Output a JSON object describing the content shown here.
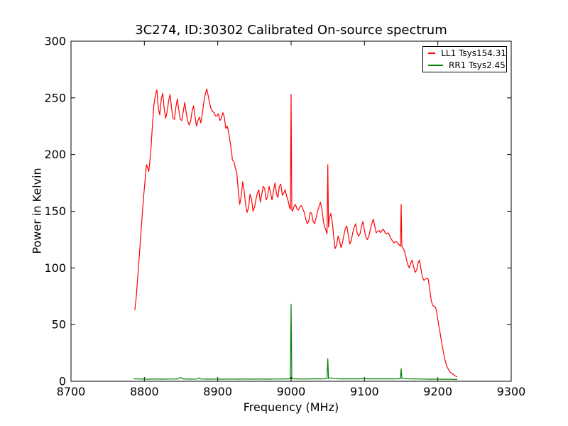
{
  "figure": {
    "background": "#ffffff",
    "frame_color": "#000000"
  },
  "chart_data": {
    "type": "line",
    "title": "3C274, ID:30302 Calibrated On-source spectrum",
    "xlabel": "Frequency (MHz)",
    "ylabel": "Power in Kelvin",
    "xlim": [
      8700,
      9300
    ],
    "ylim": [
      0,
      300
    ],
    "x_ticks": [
      8700,
      8800,
      8900,
      9000,
      9100,
      9200,
      9300
    ],
    "y_ticks": [
      0,
      50,
      100,
      150,
      200,
      250,
      300
    ],
    "grid": false,
    "legend_position": "top-right",
    "series": [
      {
        "name": "LL1 Tsys154.31",
        "color": "#ff0000",
        "points": [
          [
            8787,
            63
          ],
          [
            8789,
            75
          ],
          [
            8791,
            92
          ],
          [
            8793,
            110
          ],
          [
            8795,
            128
          ],
          [
            8797,
            146
          ],
          [
            8799,
            163
          ],
          [
            8801,
            178
          ],
          [
            8802,
            186
          ],
          [
            8803,
            191
          ],
          [
            8805,
            187
          ],
          [
            8806,
            185
          ],
          [
            8807,
            191
          ],
          [
            8809,
            205
          ],
          [
            8811,
            226
          ],
          [
            8813,
            244
          ],
          [
            8815,
            252
          ],
          [
            8817,
            257
          ],
          [
            8819,
            241
          ],
          [
            8821,
            235
          ],
          [
            8823,
            249
          ],
          [
            8825,
            254
          ],
          [
            8827,
            241
          ],
          [
            8829,
            232
          ],
          [
            8831,
            238
          ],
          [
            8833,
            247
          ],
          [
            8835,
            253
          ],
          [
            8837,
            241
          ],
          [
            8839,
            232
          ],
          [
            8841,
            231
          ],
          [
            8843,
            242
          ],
          [
            8845,
            249
          ],
          [
            8847,
            239
          ],
          [
            8849,
            231
          ],
          [
            8851,
            230
          ],
          [
            8853,
            238
          ],
          [
            8855,
            246
          ],
          [
            8857,
            237
          ],
          [
            8859,
            230
          ],
          [
            8861,
            226
          ],
          [
            8863,
            229
          ],
          [
            8865,
            238
          ],
          [
            8867,
            243
          ],
          [
            8869,
            234
          ],
          [
            8871,
            225
          ],
          [
            8873,
            230
          ],
          [
            8875,
            233
          ],
          [
            8877,
            228
          ],
          [
            8879,
            236
          ],
          [
            8881,
            246
          ],
          [
            8883,
            253
          ],
          [
            8885,
            258
          ],
          [
            8887,
            252
          ],
          [
            8889,
            245
          ],
          [
            8891,
            240
          ],
          [
            8893,
            238
          ],
          [
            8895,
            237
          ],
          [
            8897,
            234
          ],
          [
            8899,
            234
          ],
          [
            8901,
            236
          ],
          [
            8903,
            230
          ],
          [
            8905,
            232
          ],
          [
            8907,
            237
          ],
          [
            8909,
            233
          ],
          [
            8911,
            223
          ],
          [
            8913,
            225
          ],
          [
            8915,
            219
          ],
          [
            8917,
            211
          ],
          [
            8919,
            202
          ],
          [
            8920,
            195
          ],
          [
            8922,
            194
          ],
          [
            8924,
            188
          ],
          [
            8926,
            184
          ],
          [
            8928,
            168
          ],
          [
            8930,
            156
          ],
          [
            8932,
            163
          ],
          [
            8934,
            176
          ],
          [
            8936,
            168
          ],
          [
            8938,
            156
          ],
          [
            8940,
            149
          ],
          [
            8942,
            153
          ],
          [
            8944,
            165
          ],
          [
            8946,
            161
          ],
          [
            8948,
            150
          ],
          [
            8950,
            153
          ],
          [
            8952,
            160
          ],
          [
            8954,
            166
          ],
          [
            8956,
            169
          ],
          [
            8958,
            158
          ],
          [
            8960,
            165
          ],
          [
            8962,
            172
          ],
          [
            8964,
            170
          ],
          [
            8966,
            160
          ],
          [
            8968,
            163
          ],
          [
            8970,
            172
          ],
          [
            8972,
            166
          ],
          [
            8974,
            160
          ],
          [
            8976,
            168
          ],
          [
            8978,
            175
          ],
          [
            8980,
            166
          ],
          [
            8982,
            162
          ],
          [
            8984,
            172
          ],
          [
            8986,
            174
          ],
          [
            8988,
            164
          ],
          [
            8990,
            166
          ],
          [
            8992,
            169
          ],
          [
            8994,
            163
          ],
          [
            8996,
            159
          ],
          [
            8998,
            153
          ],
          [
            8999,
            152
          ],
          [
            9000,
            253
          ],
          [
            9001,
            151
          ],
          [
            9002,
            150
          ],
          [
            9004,
            154
          ],
          [
            9006,
            156
          ],
          [
            9008,
            152
          ],
          [
            9010,
            151
          ],
          [
            9012,
            154
          ],
          [
            9014,
            155
          ],
          [
            9016,
            152
          ],
          [
            9018,
            149
          ],
          [
            9020,
            143
          ],
          [
            9022,
            139
          ],
          [
            9024,
            141
          ],
          [
            9026,
            149
          ],
          [
            9028,
            148
          ],
          [
            9030,
            141
          ],
          [
            9032,
            139
          ],
          [
            9034,
            144
          ],
          [
            9036,
            150
          ],
          [
            9038,
            154
          ],
          [
            9040,
            158
          ],
          [
            9042,
            152
          ],
          [
            9044,
            141
          ],
          [
            9046,
            136
          ],
          [
            9048,
            132
          ],
          [
            9049,
            130
          ],
          [
            9050,
            191
          ],
          [
            9051,
            136
          ],
          [
            9052,
            143
          ],
          [
            9054,
            148
          ],
          [
            9056,
            141
          ],
          [
            9058,
            128
          ],
          [
            9060,
            117
          ],
          [
            9062,
            120
          ],
          [
            9064,
            128
          ],
          [
            9066,
            124
          ],
          [
            9068,
            118
          ],
          [
            9070,
            122
          ],
          [
            9072,
            129
          ],
          [
            9074,
            135
          ],
          [
            9076,
            137
          ],
          [
            9078,
            129
          ],
          [
            9080,
            121
          ],
          [
            9082,
            124
          ],
          [
            9084,
            131
          ],
          [
            9086,
            136
          ],
          [
            9088,
            139
          ],
          [
            9090,
            131
          ],
          [
            9092,
            128
          ],
          [
            9094,
            130
          ],
          [
            9096,
            137
          ],
          [
            9098,
            141
          ],
          [
            9100,
            133
          ],
          [
            9102,
            127
          ],
          [
            9104,
            125
          ],
          [
            9106,
            128
          ],
          [
            9108,
            134
          ],
          [
            9110,
            139
          ],
          [
            9112,
            143
          ],
          [
            9114,
            137
          ],
          [
            9116,
            131
          ],
          [
            9118,
            132
          ],
          [
            9120,
            133
          ],
          [
            9122,
            131
          ],
          [
            9124,
            133
          ],
          [
            9126,
            134
          ],
          [
            9128,
            131
          ],
          [
            9130,
            130
          ],
          [
            9132,
            131
          ],
          [
            9134,
            129
          ],
          [
            9136,
            126
          ],
          [
            9138,
            124
          ],
          [
            9140,
            122
          ],
          [
            9142,
            123
          ],
          [
            9144,
            123
          ],
          [
            9146,
            121
          ],
          [
            9148,
            120
          ],
          [
            9149,
            119
          ],
          [
            9150,
            156
          ],
          [
            9151,
            119
          ],
          [
            9153,
            117
          ],
          [
            9155,
            114
          ],
          [
            9157,
            108
          ],
          [
            9159,
            103
          ],
          [
            9161,
            100
          ],
          [
            9163,
            104
          ],
          [
            9165,
            107
          ],
          [
            9167,
            101
          ],
          [
            9169,
            96
          ],
          [
            9171,
            98
          ],
          [
            9173,
            104
          ],
          [
            9175,
            107
          ],
          [
            9177,
            99
          ],
          [
            9179,
            92
          ],
          [
            9181,
            89
          ],
          [
            9183,
            90
          ],
          [
            9185,
            91
          ],
          [
            9187,
            90
          ],
          [
            9189,
            81
          ],
          [
            9191,
            71
          ],
          [
            9193,
            67
          ],
          [
            9195,
            66
          ],
          [
            9197,
            65
          ],
          [
            9199,
            59
          ],
          [
            9201,
            50
          ],
          [
            9203,
            43
          ],
          [
            9205,
            35
          ],
          [
            9207,
            28
          ],
          [
            9209,
            21
          ],
          [
            9211,
            16
          ],
          [
            9213,
            12
          ],
          [
            9215,
            10
          ],
          [
            9217,
            8
          ],
          [
            9219,
            7
          ],
          [
            9221,
            6
          ],
          [
            9223,
            5
          ],
          [
            9226,
            4
          ]
        ]
      },
      {
        "name": "RR1 Tsys2.45",
        "color": "#008000",
        "points": [
          [
            8786,
            2.2
          ],
          [
            8795,
            2.0
          ],
          [
            8805,
            1.9
          ],
          [
            8815,
            2.0
          ],
          [
            8825,
            1.9
          ],
          [
            8835,
            2.0
          ],
          [
            8845,
            2.0
          ],
          [
            8848,
            3.0
          ],
          [
            8850,
            3.3
          ],
          [
            8852,
            2.1
          ],
          [
            8862,
            1.9
          ],
          [
            8872,
            2.0
          ],
          [
            8875,
            3.0
          ],
          [
            8877,
            2.0
          ],
          [
            8887,
            1.9
          ],
          [
            8897,
            2.0
          ],
          [
            8907,
            1.9
          ],
          [
            8917,
            2.0
          ],
          [
            8927,
            1.9
          ],
          [
            8937,
            2.0
          ],
          [
            8947,
            1.9
          ],
          [
            8957,
            2.0
          ],
          [
            8967,
            1.9
          ],
          [
            8977,
            2.0
          ],
          [
            8987,
            2.0
          ],
          [
            8995,
            2.1
          ],
          [
            8999,
            2.2
          ],
          [
            9000,
            68
          ],
          [
            9001,
            2.2
          ],
          [
            9008,
            2.1
          ],
          [
            9018,
            2.0
          ],
          [
            9028,
            2.1
          ],
          [
            9038,
            2.1
          ],
          [
            9046,
            2.2
          ],
          [
            9049,
            2.5
          ],
          [
            9050,
            20
          ],
          [
            9051,
            2.4
          ],
          [
            9055,
            3.0
          ],
          [
            9058,
            2.3
          ],
          [
            9068,
            2.1
          ],
          [
            9078,
            2.1
          ],
          [
            9088,
            2.1
          ],
          [
            9098,
            2.2
          ],
          [
            9108,
            2.1
          ],
          [
            9118,
            2.1
          ],
          [
            9128,
            2.1
          ],
          [
            9138,
            2.1
          ],
          [
            9147,
            2.2
          ],
          [
            9149,
            2.5
          ],
          [
            9150,
            11
          ],
          [
            9151,
            2.4
          ],
          [
            9158,
            2.2
          ],
          [
            9168,
            2.1
          ],
          [
            9178,
            2.0
          ],
          [
            9188,
            1.9
          ],
          [
            9198,
            1.9
          ],
          [
            9208,
            1.8
          ],
          [
            9216,
            1.8
          ],
          [
            9222,
            1.7
          ],
          [
            9226,
            1.6
          ]
        ]
      }
    ]
  }
}
